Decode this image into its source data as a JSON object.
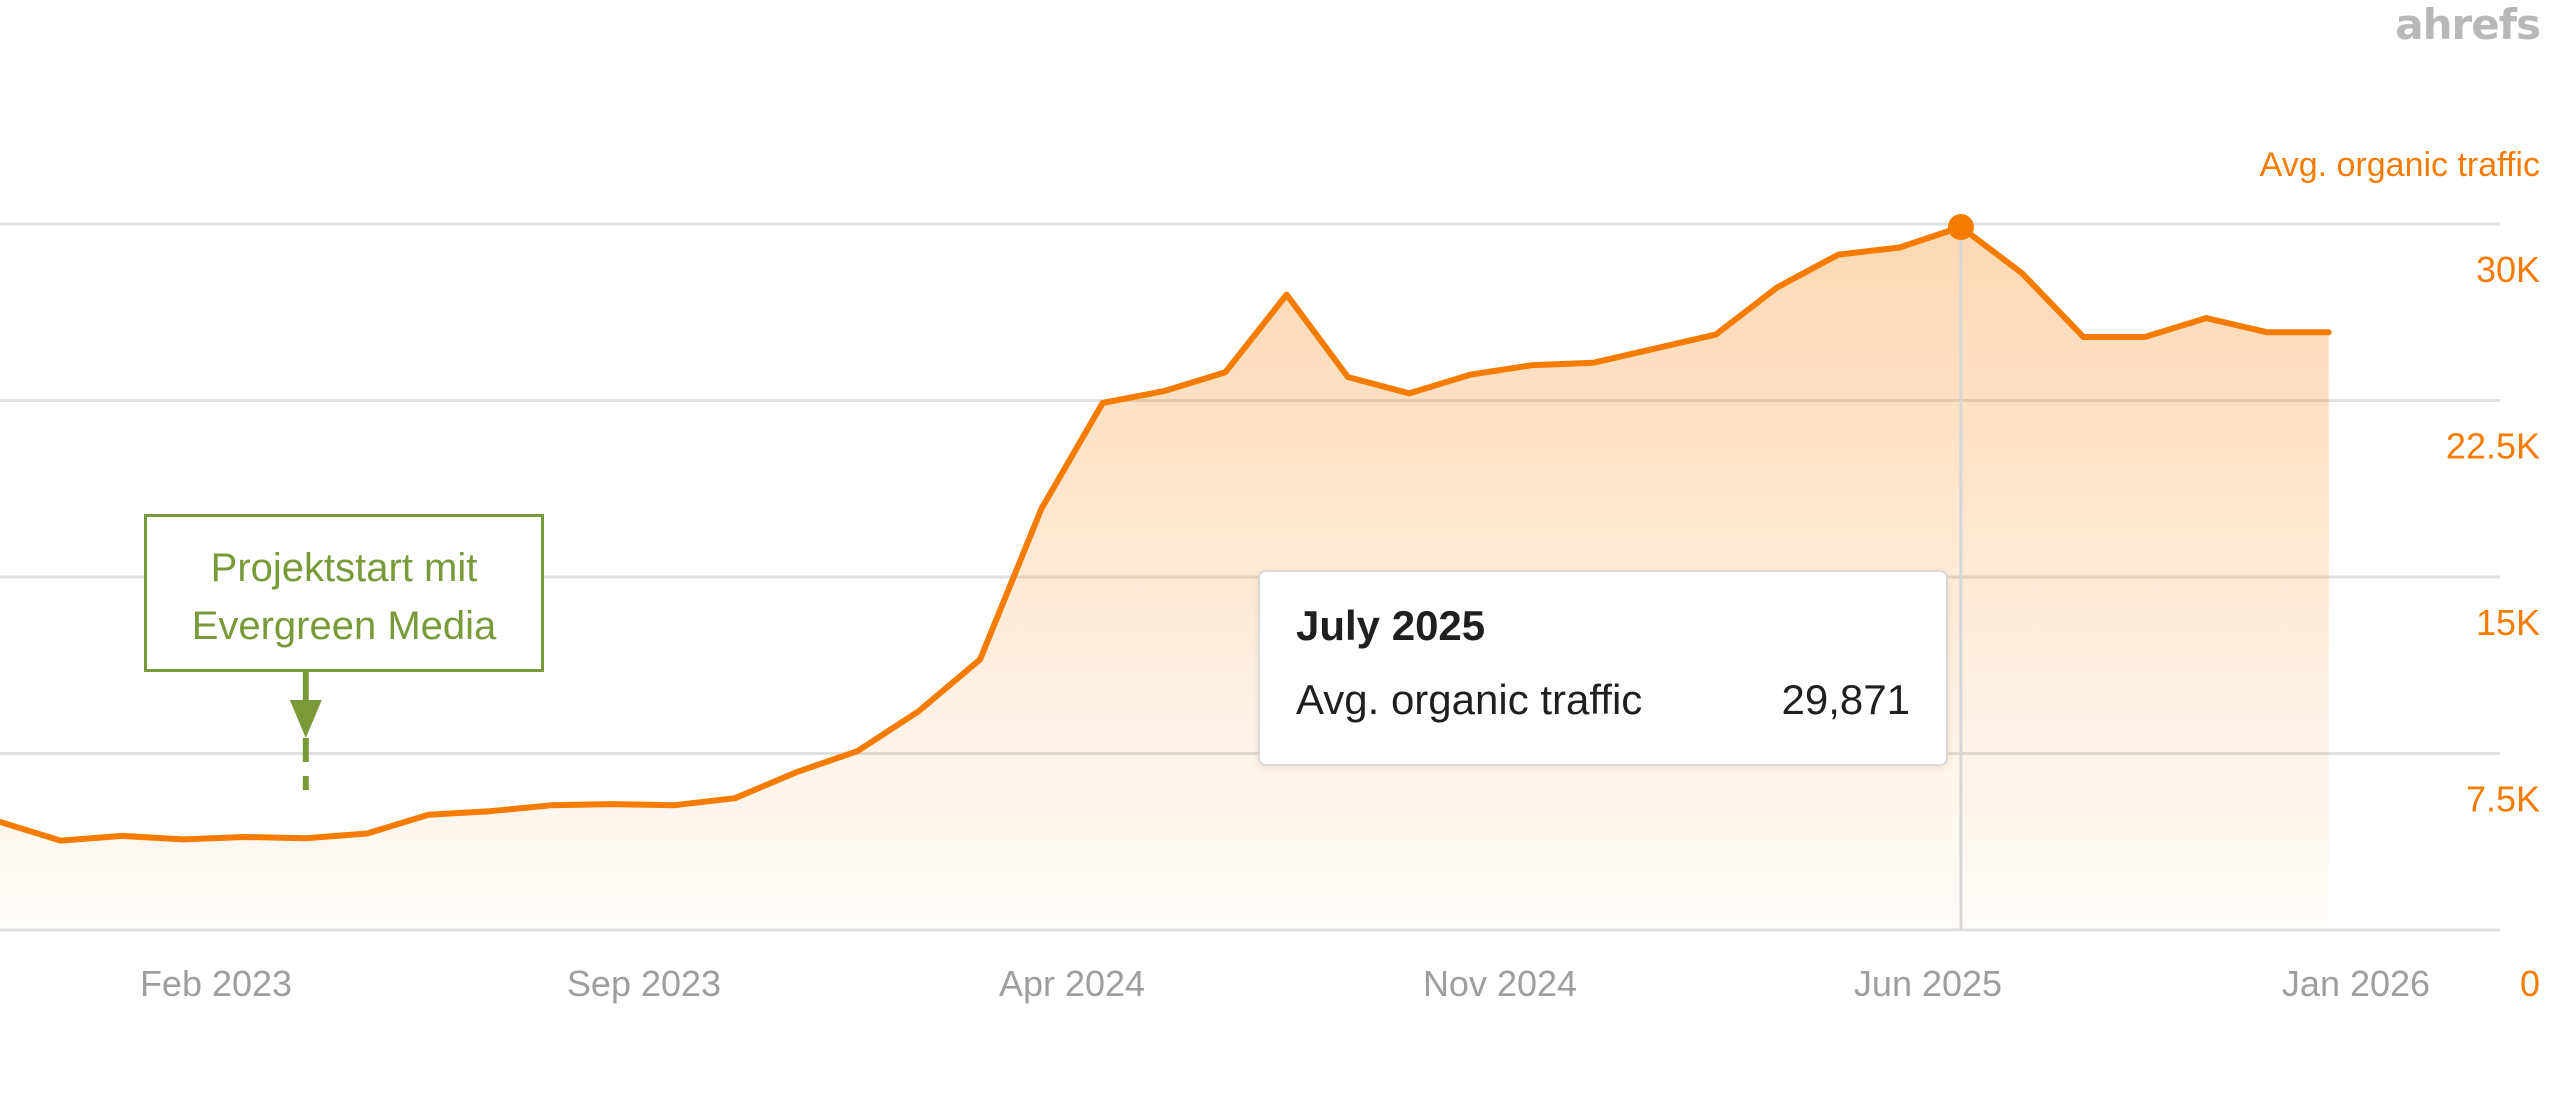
{
  "brand": "ahrefs",
  "annotation": {
    "line1": "Projektstart mit",
    "line2": "Evergreen Media"
  },
  "tooltip": {
    "title": "July 2025",
    "label": "Avg. organic traffic",
    "value": "29,871"
  },
  "colors": {
    "line": "#f57c00",
    "annotation": "#7a9a3a",
    "grid": "#e0e0e0",
    "axis_text": "#9e9e9e"
  },
  "chart_data": {
    "type": "area",
    "title": "",
    "series_label": "Avg. organic traffic",
    "x_tick_labels": [
      "Feb 2023",
      "Sep 2023",
      "Apr 2024",
      "Nov 2024",
      "Jun 2025",
      "Jan 2026"
    ],
    "y_tick_labels": [
      "0",
      "7.5K",
      "15K",
      "22.5K",
      "30K"
    ],
    "y_ticks": [
      0,
      7500,
      15000,
      22500,
      30000
    ],
    "ylim": [
      0,
      30000
    ],
    "grid": true,
    "legend": "none",
    "series": [
      {
        "name": "Avg. organic traffic",
        "x": [
          "Oct 2022",
          "Nov 2022",
          "Dec 2022",
          "Jan 2023",
          "Feb 2023",
          "Mar 2023",
          "Apr 2023",
          "May 2023",
          "Jun 2023",
          "Jul 2023",
          "Aug 2023",
          "Sep 2023",
          "Oct 2023",
          "Nov 2023",
          "Dec 2023",
          "Jan 2024",
          "Feb 2024",
          "Mar 2024",
          "Apr 2024",
          "May 2024",
          "Jun 2024",
          "Jul 2024",
          "Aug 2024",
          "Sep 2024",
          "Oct 2024",
          "Nov 2024",
          "Dec 2024",
          "Jan 2025",
          "Feb 2025",
          "Mar 2025",
          "Apr 2025",
          "May 2025",
          "Jun 2025",
          "Jul 2025",
          "Aug 2025",
          "Sep 2025",
          "Oct 2025",
          "Nov 2025",
          "Dec 2025",
          "Jan 2026"
        ],
        "values": [
          4800,
          4600,
          3800,
          4000,
          3850,
          3950,
          3900,
          4100,
          4900,
          5050,
          5300,
          5350,
          5300,
          5600,
          6700,
          7600,
          9300,
          11500,
          17900,
          22400,
          22900,
          23700,
          27000,
          23500,
          22800,
          23600,
          24000,
          24100,
          24700,
          25300,
          27300,
          28700,
          29000,
          29871,
          27900,
          25200,
          25200,
          26000,
          25400,
          25400
        ]
      }
    ],
    "highlight": {
      "x": "Jul 2025",
      "value": 29871
    },
    "annotation_at": "Apr 2023"
  }
}
